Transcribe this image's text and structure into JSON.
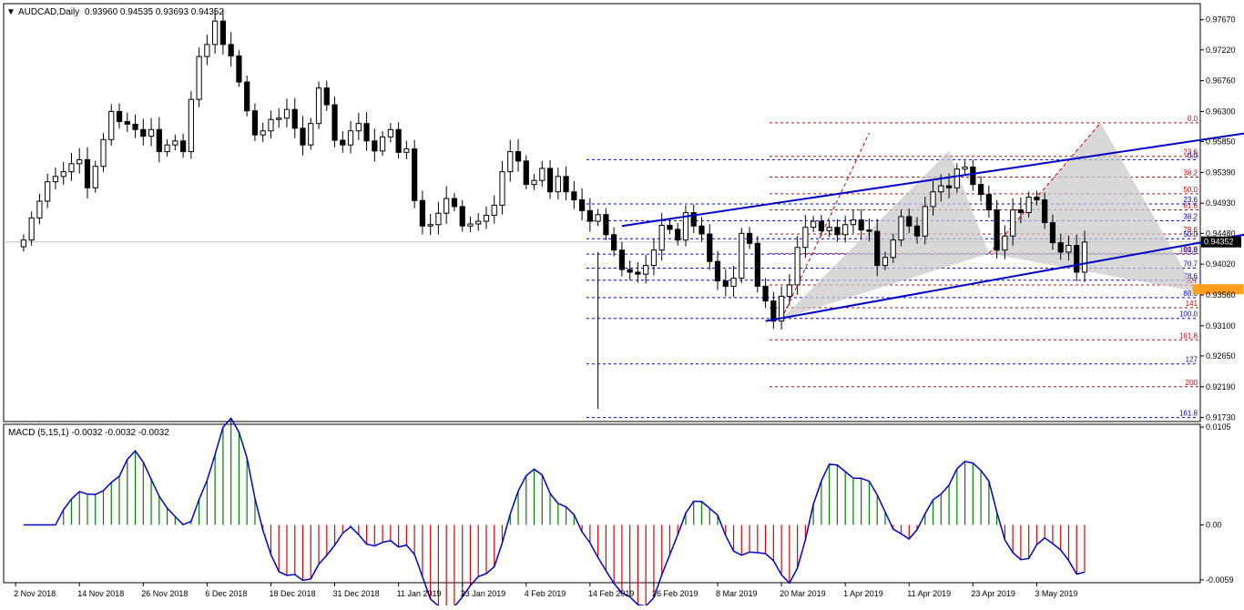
{
  "header": {
    "arrow": "▼",
    "symbol": "AUDCAD,Daily",
    "ohlc": "0.93960 0.94535 0.93693 0.94352"
  },
  "macd": {
    "label": "MACD (5,15,1) -0.0032 -0.0032 -0.0032",
    "ylim": [
      -0.0062,
      0.0108
    ],
    "ticks": [
      "0.0105",
      "0.00",
      "-0.0059"
    ],
    "tick_values": [
      0.0105,
      0.0,
      -0.0059
    ]
  },
  "price_axis": {
    "ylim": [
      0.9167,
      0.9791
    ],
    "ticks": [
      "0.97670",
      "0.97220",
      "0.96760",
      "0.96300",
      "0.95850",
      "0.95390",
      "0.94930",
      "0.94480",
      "0.94020",
      "0.93560",
      "0.93100",
      "0.92650",
      "0.92190",
      "0.91730"
    ],
    "tick_values": [
      0.9767,
      0.9722,
      0.9676,
      0.963,
      0.9585,
      0.9539,
      0.9493,
      0.9448,
      0.9402,
      0.9356,
      0.931,
      0.9265,
      0.9219,
      0.9173
    ],
    "current_price": "0.94352",
    "current_value": 0.94352
  },
  "date_axis": {
    "labels": [
      "2 Nov 2018",
      "14 Nov 2018",
      "26 Nov 2018",
      "6 Dec 2018",
      "18 Dec 2018",
      "31 Dec 2018",
      "11 Jan 2019",
      "23 Jan 2019",
      "4 Feb 2019",
      "14 Feb 2019",
      "26 Feb 2019",
      "8 Mar 2019",
      "20 Mar 2019",
      "1 Apr 2019",
      "11 Apr 2019",
      "23 Apr 2019",
      "3 May 2019"
    ],
    "label_bar_index": [
      1,
      9,
      17,
      25,
      33,
      41,
      49,
      57,
      65,
      73,
      81,
      89,
      97,
      105,
      113,
      121,
      129
    ]
  },
  "fibonacci": {
    "red_levels": [
      {
        "label": "0.0",
        "price": 0.9613
      },
      {
        "label": "23.6",
        "price": 0.9563
      },
      {
        "label": "38.2",
        "price": 0.9532
      },
      {
        "label": "50.0",
        "price": 0.9507
      },
      {
        "label": "61.8",
        "price": 0.9483
      },
      {
        "label": "78.6",
        "price": 0.9447
      },
      {
        "label": "100.0",
        "price": 0.9418
      },
      {
        "label": "127",
        "price": 0.9371
      },
      {
        "label": "141",
        "price": 0.9337
      },
      {
        "label": "161.8",
        "price": 0.9289
      },
      {
        "label": "200",
        "price": 0.9219
      }
    ],
    "blue_levels": [
      {
        "label": "0.0",
        "price": 0.9558
      },
      {
        "label": "23.6",
        "price": 0.9492
      },
      {
        "label": "38.2",
        "price": 0.9467
      },
      {
        "label": "50.0",
        "price": 0.944
      },
      {
        "label": "61.8",
        "price": 0.9417
      },
      {
        "label": "70.7",
        "price": 0.9396
      },
      {
        "label": "78.6",
        "price": 0.9378
      },
      {
        "label": "88.6",
        "price": 0.9352
      },
      {
        "label": "100.0",
        "price": 0.9321
      },
      {
        "label": "127",
        "price": 0.9253
      },
      {
        "label": "161.8",
        "price": 0.9173
      }
    ]
  },
  "chart_data": {
    "type": "candlestick",
    "symbol": "AUDCAD",
    "timeframe": "Daily",
    "ylim": [
      0.9167,
      0.9791
    ],
    "series": [
      {
        "name": "price",
        "closes": [
          0.9438,
          0.9471,
          0.9496,
          0.9525,
          0.9533,
          0.954,
          0.9552,
          0.9558,
          0.9516,
          0.9548,
          0.9588,
          0.963,
          0.9615,
          0.9611,
          0.9603,
          0.9593,
          0.9603,
          0.957,
          0.958,
          0.9586,
          0.957,
          0.9648,
          0.9712,
          0.973,
          0.9765,
          0.973,
          0.9713,
          0.9674,
          0.9631,
          0.9595,
          0.9601,
          0.9618,
          0.962,
          0.9633,
          0.9605,
          0.958,
          0.9612,
          0.9665,
          0.964,
          0.9587,
          0.958,
          0.9601,
          0.9612,
          0.9586,
          0.9571,
          0.9592,
          0.9603,
          0.9569,
          0.9574,
          0.9497,
          0.9459,
          0.9461,
          0.9478,
          0.95,
          0.9488,
          0.9459,
          0.9462,
          0.9466,
          0.9475,
          0.949,
          0.954,
          0.957,
          0.9556,
          0.9521,
          0.9527,
          0.9545,
          0.951,
          0.9533,
          0.951,
          0.9498,
          0.9482,
          0.9466,
          0.9476,
          0.9446,
          0.9423,
          0.9394,
          0.939,
          0.9387,
          0.94,
          0.9423,
          0.946,
          0.9454,
          0.9438,
          0.9479,
          0.9459,
          0.9447,
          0.9406,
          0.9377,
          0.9369,
          0.9381,
          0.9448,
          0.9433,
          0.9369,
          0.9347,
          0.9317,
          0.9354,
          0.9371,
          0.9427,
          0.9457,
          0.9466,
          0.9452,
          0.9457,
          0.9446,
          0.9461,
          0.9468,
          0.9453,
          0.9451,
          0.94,
          0.9412,
          0.9438,
          0.9473,
          0.9459,
          0.9444,
          0.9488,
          0.951,
          0.9519,
          0.9516,
          0.9544,
          0.9547,
          0.9521,
          0.9506,
          0.9483,
          0.9423,
          0.9444,
          0.9483,
          0.9479,
          0.9502,
          0.9498,
          0.9464,
          0.9434,
          0.942,
          0.943,
          0.939,
          0.9435
        ]
      }
    ],
    "indicator": {
      "name": "MACD (5,15,1)",
      "value": -0.0032
    }
  }
}
